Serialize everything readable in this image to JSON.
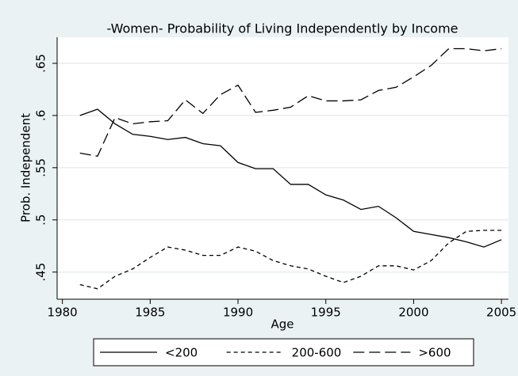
{
  "chart_data": {
    "type": "line",
    "title": "-Women- Probability of Living Independently by Income",
    "xlabel": "Age",
    "ylabel": "Prob. Independent",
    "x": [
      1981,
      1982,
      1983,
      1984,
      1985,
      1986,
      1987,
      1988,
      1989,
      1990,
      1991,
      1992,
      1993,
      1994,
      1995,
      1996,
      1997,
      1998,
      1999,
      2000,
      2001,
      2002,
      2003,
      2004,
      2005
    ],
    "series": [
      {
        "name": "<200",
        "color": "#000000",
        "dash": "none",
        "values": [
          0.6,
          0.606,
          0.592,
          0.582,
          0.58,
          0.577,
          0.579,
          0.573,
          0.571,
          0.555,
          0.549,
          0.549,
          0.534,
          0.534,
          0.524,
          0.519,
          0.51,
          0.513,
          0.502,
          0.489,
          0.486,
          0.483,
          0.479,
          0.474,
          0.481
        ]
      },
      {
        "name": "200-600",
        "color": "#000000",
        "dash": "5,4",
        "values": [
          0.438,
          0.434,
          0.446,
          0.453,
          0.464,
          0.474,
          0.471,
          0.466,
          0.466,
          0.474,
          0.47,
          0.461,
          0.456,
          0.453,
          0.446,
          0.44,
          0.446,
          0.456,
          0.456,
          0.452,
          0.461,
          0.478,
          0.489,
          0.49,
          0.49
        ]
      },
      {
        "name": ">600",
        "color": "#000000",
        "dash": "14,6",
        "values": [
          0.564,
          0.561,
          0.598,
          0.592,
          0.594,
          0.595,
          0.615,
          0.602,
          0.62,
          0.629,
          0.603,
          0.605,
          0.608,
          0.619,
          0.614,
          0.614,
          0.615,
          0.624,
          0.627,
          0.637,
          0.648,
          0.664,
          0.664,
          0.662,
          0.664
        ]
      }
    ],
    "xlim": [
      1979.7,
      2005.4
    ],
    "xticks": [
      1980,
      1985,
      1990,
      1995,
      2000,
      2005
    ],
    "ylim": [
      0.424,
      0.675
    ],
    "yticks": [
      {
        "value": 0.45,
        "label": ".45"
      },
      {
        "value": 0.5,
        "label": ".5"
      },
      {
        "value": 0.55,
        "label": ".55"
      },
      {
        "value": 0.6,
        "label": ".6"
      },
      {
        "value": 0.65,
        "label": ".65"
      }
    ],
    "grid": true,
    "legend": "bottom"
  }
}
